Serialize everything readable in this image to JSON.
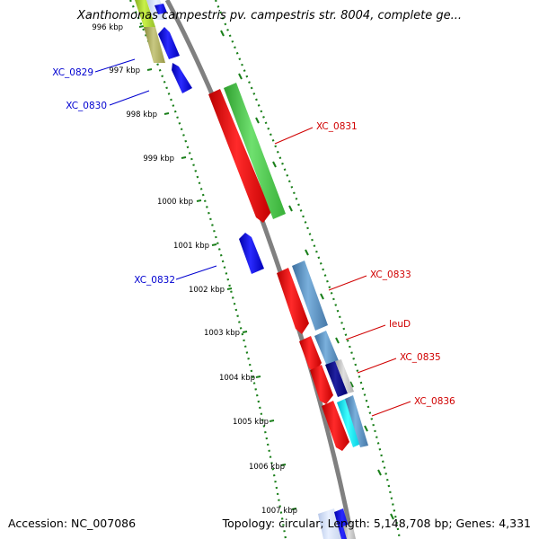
{
  "title": "Xanthomonas campestris pv. campestris str. 8004, complete ge...",
  "footer": {
    "accession": "Accession: NC_007086",
    "summary": "Topology: circular; Length: 5,148,708 bp; Genes: 4,331"
  },
  "scale": {
    "labels": [
      "996 kbp",
      "997 kbp",
      "998 kbp",
      "999 kbp",
      "1000 kbp",
      "1001 kbp",
      "1002 kbp",
      "1003 kbp",
      "1004 kbp",
      "1005 kbp",
      "1006 kbp",
      "1007 kbp"
    ],
    "ruler_color": "#1a7f1a"
  },
  "colors": {
    "forward_strand": "#e00000",
    "reverse_strand": "#0000e0",
    "backbone": "#808080"
  },
  "genes": {
    "reverse": [
      "XC_0829",
      "XC_0830",
      "XC_0832"
    ],
    "forward": [
      "XC_0831",
      "XC_0833",
      "leuD",
      "XC_0835",
      "XC_0836"
    ]
  }
}
